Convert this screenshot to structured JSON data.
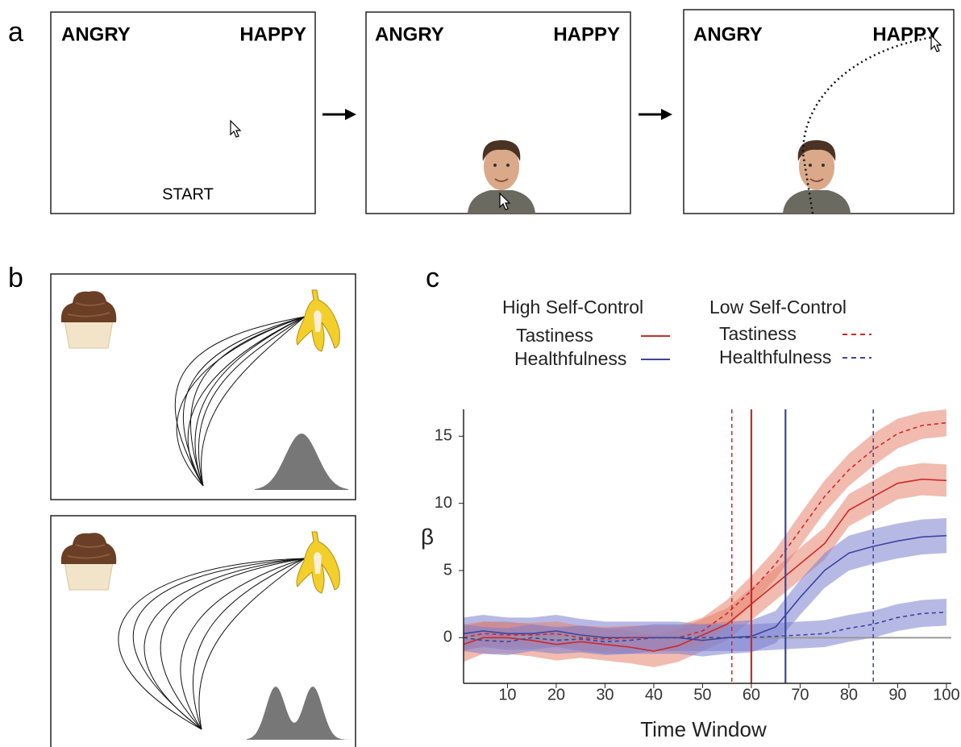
{
  "panels": {
    "a": {
      "label": "a",
      "screens": [
        {
          "left": "ANGRY",
          "right": "HAPPY",
          "prompt": "START"
        },
        {
          "left": "ANGRY",
          "right": "HAPPY"
        },
        {
          "left": "ANGRY",
          "right": "HAPPY"
        }
      ]
    },
    "b": {
      "label": "b"
    },
    "c": {
      "label": "c"
    }
  },
  "chart_data": {
    "type": "line",
    "xlabel": "Time Window",
    "ylabel": "β",
    "groups": [
      "High Self-Control",
      "Low Self-Control"
    ],
    "x": [
      1,
      5,
      10,
      15,
      20,
      25,
      30,
      35,
      40,
      45,
      50,
      55,
      60,
      65,
      70,
      75,
      80,
      85,
      90,
      95,
      100
    ],
    "series": [
      {
        "name": "Tastiness",
        "group": 0,
        "color": "#cc2a2a",
        "band_color": "#e8836e",
        "dashed": false,
        "values": [
          -0.5,
          0,
          0,
          -0.2,
          -0.5,
          -0.3,
          -0.5,
          -0.7,
          -1,
          -0.6,
          0.2,
          1,
          2.5,
          4,
          5.5,
          7,
          9.5,
          10.5,
          11.5,
          11.8,
          11.7
        ],
        "error": [
          1.3,
          1.2,
          1.2,
          1.2,
          1.2,
          1.2,
          1.2,
          1.2,
          1.2,
          1.2,
          1.2,
          1.2,
          1.2,
          1.2,
          1.2,
          1.2,
          1.2,
          1.2,
          1.2,
          1.2,
          1.2
        ]
      },
      {
        "name": "Healthfulness",
        "group": 0,
        "color": "#3a45a0",
        "band_color": "#7b7fd0",
        "dashed": false,
        "values": [
          0.3,
          0.5,
          0.3,
          0.3,
          0.5,
          0.2,
          0,
          0,
          0,
          0,
          -0.2,
          0,
          0.1,
          0.8,
          3,
          5,
          6.3,
          6.8,
          7.2,
          7.5,
          7.6
        ],
        "error": [
          1.2,
          1.2,
          1.2,
          1.2,
          1.2,
          1.2,
          1.2,
          1.2,
          1.2,
          1.2,
          1.2,
          1.2,
          1.2,
          1.2,
          1.3,
          1.3,
          1.3,
          1.3,
          1.3,
          1.3,
          1.3
        ]
      },
      {
        "name": "Tastiness",
        "group": 1,
        "color": "#cc2a2a",
        "band_color": "#e8836e",
        "dashed": true,
        "values": [
          0,
          0.3,
          0.2,
          0.2,
          0.3,
          0,
          -0.1,
          0,
          0,
          0,
          0.5,
          1.8,
          3.5,
          5.5,
          8,
          10.5,
          12.5,
          14,
          15.2,
          15.8,
          16
        ],
        "error": [
          1,
          0.9,
          0.9,
          0.9,
          0.9,
          0.9,
          0.9,
          0.9,
          0.9,
          0.9,
          1,
          1,
          1.1,
          1.1,
          1.2,
          1.2,
          1.2,
          1.2,
          1.1,
          1,
          1
        ]
      },
      {
        "name": "Healthfulness",
        "group": 1,
        "color": "#3a45a0",
        "band_color": "#7b7fd0",
        "dashed": true,
        "values": [
          0,
          -0.2,
          -0.3,
          0,
          -0.2,
          -0.1,
          -0.3,
          -0.2,
          0,
          0,
          0,
          0,
          0,
          0.1,
          0.2,
          0.3,
          0.7,
          1,
          1.5,
          1.8,
          1.9
        ],
        "error": [
          1,
          1,
          1,
          1,
          1,
          1,
          1,
          1,
          1,
          1,
          1,
          1,
          1,
          1,
          1,
          1,
          1,
          1,
          1,
          1,
          1
        ]
      }
    ],
    "vlines": [
      {
        "value": 56,
        "color": "#cc2a2a",
        "dashed": true
      },
      {
        "value": 60,
        "color": "#cc2a2a",
        "dashed": false
      },
      {
        "value": 67,
        "color": "#3a45a0",
        "dashed": false
      },
      {
        "value": 85,
        "color": "#3a45a0",
        "dashed": true
      }
    ],
    "reference_line": 0,
    "xlim": [
      1,
      101
    ],
    "ylim": [
      -3.4,
      17
    ],
    "xticks": [
      10,
      20,
      30,
      40,
      50,
      60,
      70,
      80,
      90,
      100
    ],
    "yticks": [
      0,
      5,
      10,
      15
    ]
  }
}
